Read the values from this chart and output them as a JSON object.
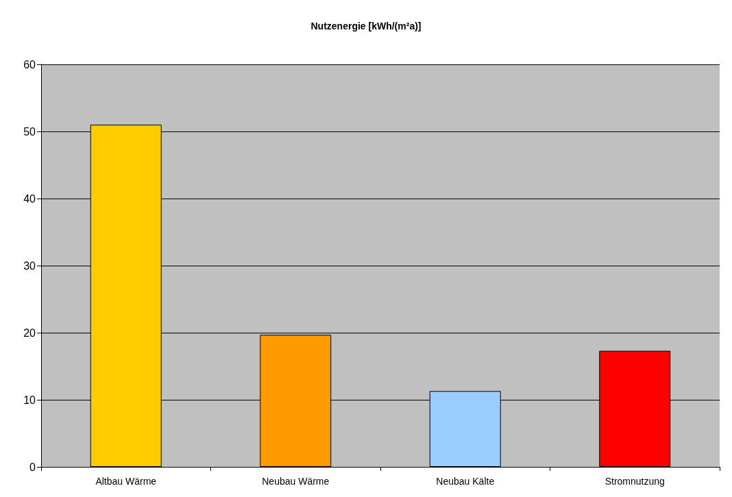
{
  "chart_data": {
    "type": "bar",
    "title": "Nutzenergie [kWh/(m²a)]",
    "categories": [
      "Altbau Wärme",
      "Neubau Wärme",
      "Neubau Kälte",
      "Stromnutzung"
    ],
    "values": [
      51,
      19.7,
      11.3,
      17.3
    ],
    "colors": [
      "#ffcc00",
      "#ff9900",
      "#99ccff",
      "#ff0000"
    ],
    "ylim": [
      0,
      60
    ],
    "yticks": [
      0,
      10,
      20,
      30,
      40,
      50,
      60
    ],
    "grid": "y"
  }
}
